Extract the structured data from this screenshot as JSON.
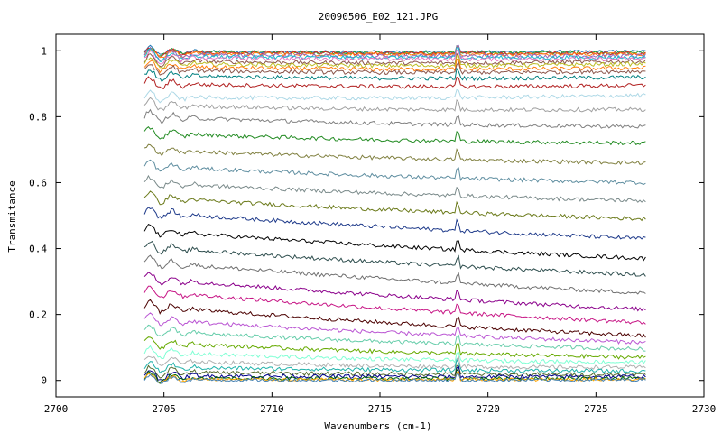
{
  "chart_data": {
    "type": "line",
    "title": "20090506_E02_121.JPG",
    "xlabel": "Wavenumbers (cm-1)",
    "ylabel": "Transmitance",
    "xlim": [
      2700,
      2730
    ],
    "ylim": [
      -0.05,
      1.05
    ],
    "x_ticks": [
      2700,
      2705,
      2710,
      2715,
      2720,
      2725,
      2730
    ],
    "x_tick_labels": [
      "2700",
      "2705",
      "2710",
      "2715",
      "2720",
      "2725",
      "2730"
    ],
    "y_ticks": [
      0,
      0.2,
      0.4,
      0.6,
      0.8,
      1
    ],
    "y_tick_labels": [
      "0",
      "0.2",
      "0.4",
      "0.6",
      "0.8",
      "1"
    ],
    "grid": false,
    "legend": "none",
    "x_range": [
      2704.1,
      2727.3
    ],
    "series": [
      {
        "color": "#1f77b4",
        "values": [
          0.998,
          0.998
        ]
      },
      {
        "color": "#2ca02c",
        "values": [
          0.997,
          0.995
        ]
      },
      {
        "color": "#d62728",
        "values": [
          0.995,
          0.993
        ]
      },
      {
        "color": "#ff7f0e",
        "values": [
          0.992,
          0.99
        ]
      },
      {
        "color": "#9467bd",
        "values": [
          0.988,
          0.985
        ]
      },
      {
        "color": "#17becf",
        "values": [
          0.983,
          0.98
        ]
      },
      {
        "color": "#e377c2",
        "values": [
          0.978,
          0.975
        ]
      },
      {
        "color": "#8c564b",
        "values": [
          0.97,
          0.968
        ]
      },
      {
        "color": "#bcbd22",
        "values": [
          0.962,
          0.96
        ]
      },
      {
        "color": "#ff7f0e",
        "values": [
          0.952,
          0.948
        ]
      },
      {
        "color": "#8c564b",
        "values": [
          0.942,
          0.938
        ]
      },
      {
        "color": "#008080",
        "values": [
          0.925,
          0.92
        ]
      },
      {
        "color": "#b22222",
        "values": [
          0.9,
          0.895
        ]
      },
      {
        "color": "#add8e6",
        "values": [
          0.86,
          0.865
        ]
      },
      {
        "color": "#a0a0a0",
        "values": [
          0.835,
          0.822
        ]
      },
      {
        "color": "#808080",
        "values": [
          0.8,
          0.77
        ]
      },
      {
        "color": "#228b22",
        "values": [
          0.75,
          0.72
        ]
      },
      {
        "color": "#808040",
        "values": [
          0.7,
          0.66
        ]
      },
      {
        "color": "#5f8ea0",
        "values": [
          0.65,
          0.6
        ]
      },
      {
        "color": "#7a8a8a",
        "values": [
          0.6,
          0.545
        ]
      },
      {
        "color": "#6b7a1a",
        "values": [
          0.555,
          0.49
        ]
      },
      {
        "color": "#1e3a8a",
        "values": [
          0.51,
          0.43
        ]
      },
      {
        "color": "#000000",
        "values": [
          0.455,
          0.37
        ]
      },
      {
        "color": "#2f4f4f",
        "values": [
          0.405,
          0.32
        ]
      },
      {
        "color": "#707070",
        "values": [
          0.36,
          0.265
        ]
      },
      {
        "color": "#8b008b",
        "values": [
          0.31,
          0.215
        ]
      },
      {
        "color": "#c71585",
        "values": [
          0.27,
          0.175
        ]
      },
      {
        "color": "#4b0000",
        "values": [
          0.225,
          0.135
        ]
      },
      {
        "color": "#ba55d3",
        "values": [
          0.185,
          0.115
        ]
      },
      {
        "color": "#66cdaa",
        "values": [
          0.15,
          0.095
        ]
      },
      {
        "color": "#66aa00",
        "values": [
          0.115,
          0.07
        ]
      },
      {
        "color": "#7fffd4",
        "values": [
          0.085,
          0.055
        ]
      },
      {
        "color": "#b0b0b0",
        "values": [
          0.06,
          0.04
        ]
      },
      {
        "color": "#20b2aa",
        "values": [
          0.04,
          0.028
        ]
      },
      {
        "color": "#556b2f",
        "values": [
          0.025,
          0.018
        ]
      },
      {
        "color": "#00008b",
        "values": [
          0.015,
          0.012
        ]
      },
      {
        "color": "#006400",
        "values": [
          0.008,
          0.007
        ]
      },
      {
        "color": "#ffa500",
        "values": [
          0.004,
          0.004
        ]
      },
      {
        "color": "#4682b4",
        "values": [
          0.002,
          0.002
        ]
      }
    ]
  }
}
